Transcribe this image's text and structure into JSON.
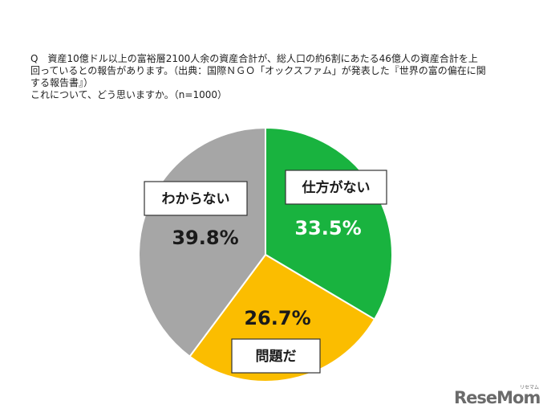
{
  "question": {
    "lines": [
      "Q　資産10億ドル以上の富裕層2100人余の資産合計が、総人口の約6割にあたる46億人の資産合計を上",
      "回っているとの報告があります。（出典：国際ＮＧＯ「オックスファム」が発表した『世界の富の偏在に関",
      "する報告書』）",
      "これについて、どう思いますか。（n=1000）"
    ]
  },
  "chart_data": {
    "type": "pie",
    "start_angle_deg": 0,
    "direction": "clockwise",
    "slices": [
      {
        "label": "仕方がない",
        "value": 33.5,
        "display": "33.5%",
        "color": "#19b33f",
        "value_color": "#ffffff"
      },
      {
        "label": "問題だ",
        "value": 26.7,
        "display": "26.7%",
        "color": "#fbbd00",
        "value_color": "#1a1a1a"
      },
      {
        "label": "わからない",
        "value": 39.8,
        "display": "39.8%",
        "color": "#a6a6a6",
        "value_color": "#1a1a1a"
      }
    ]
  },
  "logo": {
    "text": "ReseMom",
    "kana": "リセマム"
  }
}
